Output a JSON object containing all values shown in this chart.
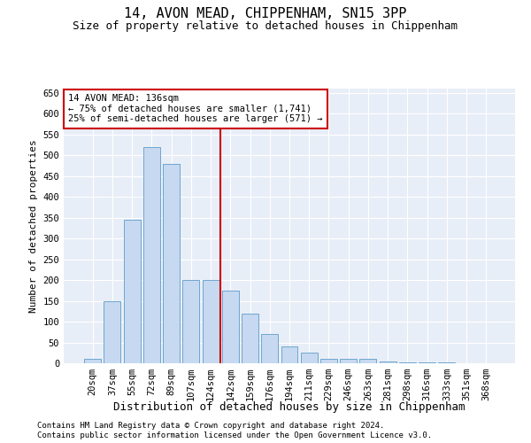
{
  "title": "14, AVON MEAD, CHIPPENHAM, SN15 3PP",
  "subtitle": "Size of property relative to detached houses in Chippenham",
  "xlabel": "Distribution of detached houses by size in Chippenham",
  "ylabel": "Number of detached properties",
  "categories": [
    "20sqm",
    "37sqm",
    "55sqm",
    "72sqm",
    "89sqm",
    "107sqm",
    "124sqm",
    "142sqm",
    "159sqm",
    "176sqm",
    "194sqm",
    "211sqm",
    "229sqm",
    "246sqm",
    "263sqm",
    "281sqm",
    "298sqm",
    "316sqm",
    "333sqm",
    "351sqm",
    "368sqm"
  ],
  "values": [
    10,
    150,
    345,
    520,
    480,
    200,
    200,
    175,
    120,
    70,
    40,
    25,
    10,
    10,
    10,
    5,
    2,
    2,
    2,
    0,
    0
  ],
  "bar_color": "#c6d9f0",
  "bar_edge_color": "#6ea6d0",
  "vline_index": 7,
  "vline_color": "#cc0000",
  "annotation_text": "14 AVON MEAD: 136sqm\n← 75% of detached houses are smaller (1,741)\n25% of semi-detached houses are larger (571) →",
  "annotation_box_color": "white",
  "annotation_box_edge_color": "#cc0000",
  "footnote1": "Contains HM Land Registry data © Crown copyright and database right 2024.",
  "footnote2": "Contains public sector information licensed under the Open Government Licence v3.0.",
  "background_color": "#e8eef7",
  "ylim": [
    0,
    660
  ],
  "yticks": [
    0,
    50,
    100,
    150,
    200,
    250,
    300,
    350,
    400,
    450,
    500,
    550,
    600,
    650
  ],
  "title_fontsize": 11,
  "subtitle_fontsize": 9,
  "ylabel_fontsize": 8,
  "xlabel_fontsize": 9,
  "tick_fontsize": 7.5,
  "footnote_fontsize": 6.5
}
